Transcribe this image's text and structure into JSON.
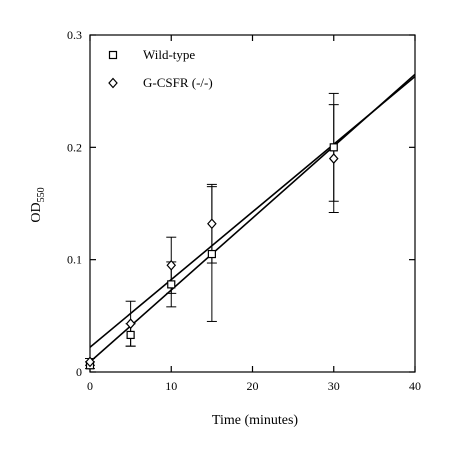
{
  "chart_data": {
    "type": "scatter",
    "xlabel": "Time (minutes)",
    "ylabel": "OD",
    "ylabel_sub": "550",
    "xlim": [
      0,
      40
    ],
    "ylim": [
      0,
      0.3
    ],
    "x_ticks": [
      0,
      10,
      20,
      30,
      40
    ],
    "x_tick_labels": [
      "0",
      "10",
      "20",
      "30",
      "40"
    ],
    "y_ticks": [
      0,
      0.1,
      0.2,
      0.3
    ],
    "y_tick_labels": [
      "0",
      "0.1",
      "0.2",
      "0.3"
    ],
    "legend_placement": "top-left",
    "grid": false,
    "series": [
      {
        "name": "Wild-type",
        "marker": "square",
        "x": [
          0,
          5,
          10,
          15,
          30
        ],
        "y": [
          0.006,
          0.033,
          0.078,
          0.105,
          0.2
        ],
        "error": [
          0.003,
          0.01,
          0.02,
          0.06,
          0.048
        ],
        "fit_line": [
          [
            0,
            0.009
          ],
          [
            40,
            0.265
          ]
        ]
      },
      {
        "name": "G-CSFR (-/-)",
        "marker": "diamond",
        "x": [
          0,
          5,
          10,
          15,
          30
        ],
        "y": [
          0.009,
          0.043,
          0.095,
          0.132,
          0.19
        ],
        "error": [
          0.003,
          0.02,
          0.025,
          0.035,
          0.048
        ],
        "fit_line": [
          [
            0,
            0.022
          ],
          [
            40,
            0.263
          ]
        ]
      }
    ]
  }
}
